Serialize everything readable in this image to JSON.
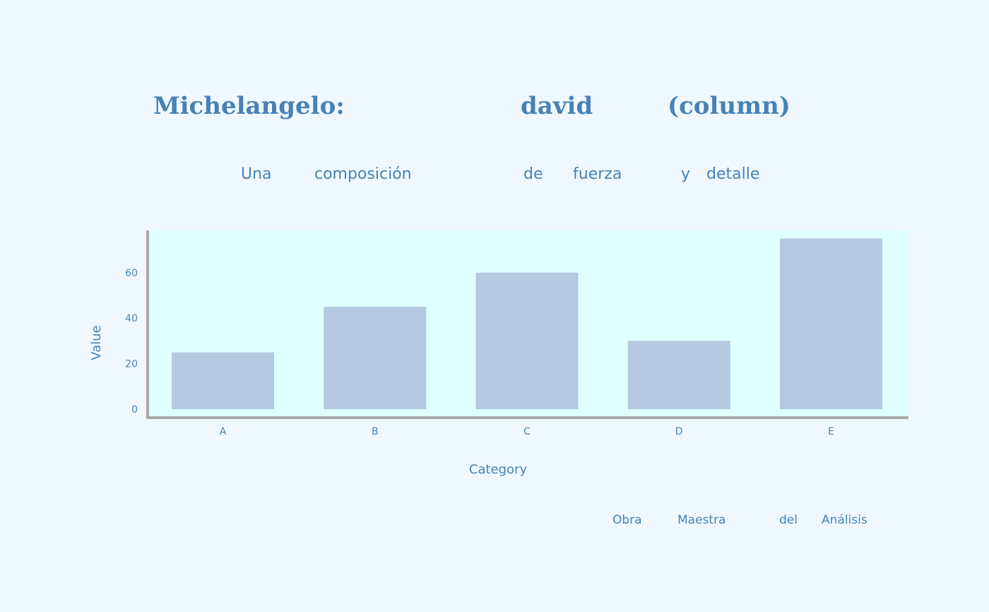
{
  "header": {
    "title_words": [
      "Michelangelo:",
      "david",
      "(column)"
    ],
    "subtitle_words": [
      "Una",
      "composición",
      "de",
      "fuerza",
      "y",
      "detalle"
    ]
  },
  "footer": {
    "words": [
      "Obra",
      "Maestra",
      "del",
      "Análisis"
    ]
  },
  "colors": {
    "background": "#f0f8ff",
    "plot_background": "#e0ffff",
    "bar": "#b5c9e0",
    "axis": "#a9a9a9",
    "text": "#4682b4"
  },
  "chart_data": {
    "type": "bar",
    "title": "Michelangelo: david (column)",
    "subtitle": "Una composición de fuerza y detalle",
    "categories": [
      "A",
      "B",
      "C",
      "D",
      "E"
    ],
    "values": [
      25,
      45,
      60,
      30,
      75
    ],
    "xlabel": "Category",
    "ylabel": "Value",
    "ylim": [
      0,
      78
    ],
    "yticks": [
      0,
      20,
      40,
      60
    ],
    "grid": false,
    "legend": "none"
  }
}
